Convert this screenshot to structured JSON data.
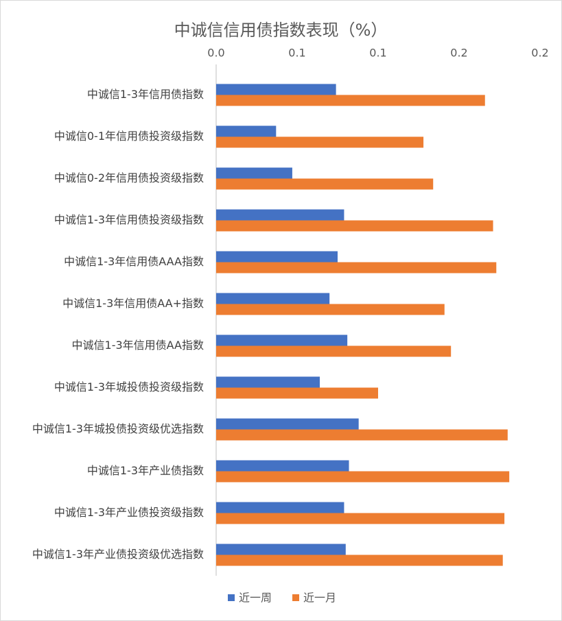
{
  "chart_data": {
    "type": "hbar",
    "title": "中诚信信用债指数表现（%）",
    "categories": [
      "中诚信1-3年信用债指数",
      "中诚信0-1年信用债投资级指数",
      "中诚信0-2年信用债投资级指数",
      "中诚信1-3年信用债投资级指数",
      "中诚信1-3年信用债AAA指数",
      "中诚信1-3年信用债AA+指数",
      "中诚信1-3年信用债AA指数",
      "中诚信1-3年城投债投资级指数",
      "中诚信1-3年城投债投资级优选指数",
      "中诚信1-3年产业债指数",
      "中诚信1-3年产业债投资级指数",
      "中诚信1-3年产业债投资级优选指数"
    ],
    "series": [
      {
        "name": "近一周",
        "color": "#4472c4",
        "values": [
          0.074,
          0.037,
          0.047,
          0.079,
          0.075,
          0.07,
          0.081,
          0.064,
          0.088,
          0.082,
          0.079,
          0.08
        ]
      },
      {
        "name": "近一月",
        "color": "#ed7d31",
        "values": [
          0.166,
          0.128,
          0.134,
          0.171,
          0.173,
          0.141,
          0.145,
          0.1,
          0.18,
          0.181,
          0.178,
          0.177
        ]
      }
    ],
    "xlim": [
      0,
      0.2
    ],
    "xticks": [
      {
        "value": 0,
        "label": "0.0"
      },
      {
        "value": 0.05,
        "label": "0.1"
      },
      {
        "value": 0.1,
        "label": "0.1"
      },
      {
        "value": 0.15,
        "label": "0.2"
      },
      {
        "value": 0.2,
        "label": "0.2"
      }
    ],
    "legend": "bottom"
  }
}
